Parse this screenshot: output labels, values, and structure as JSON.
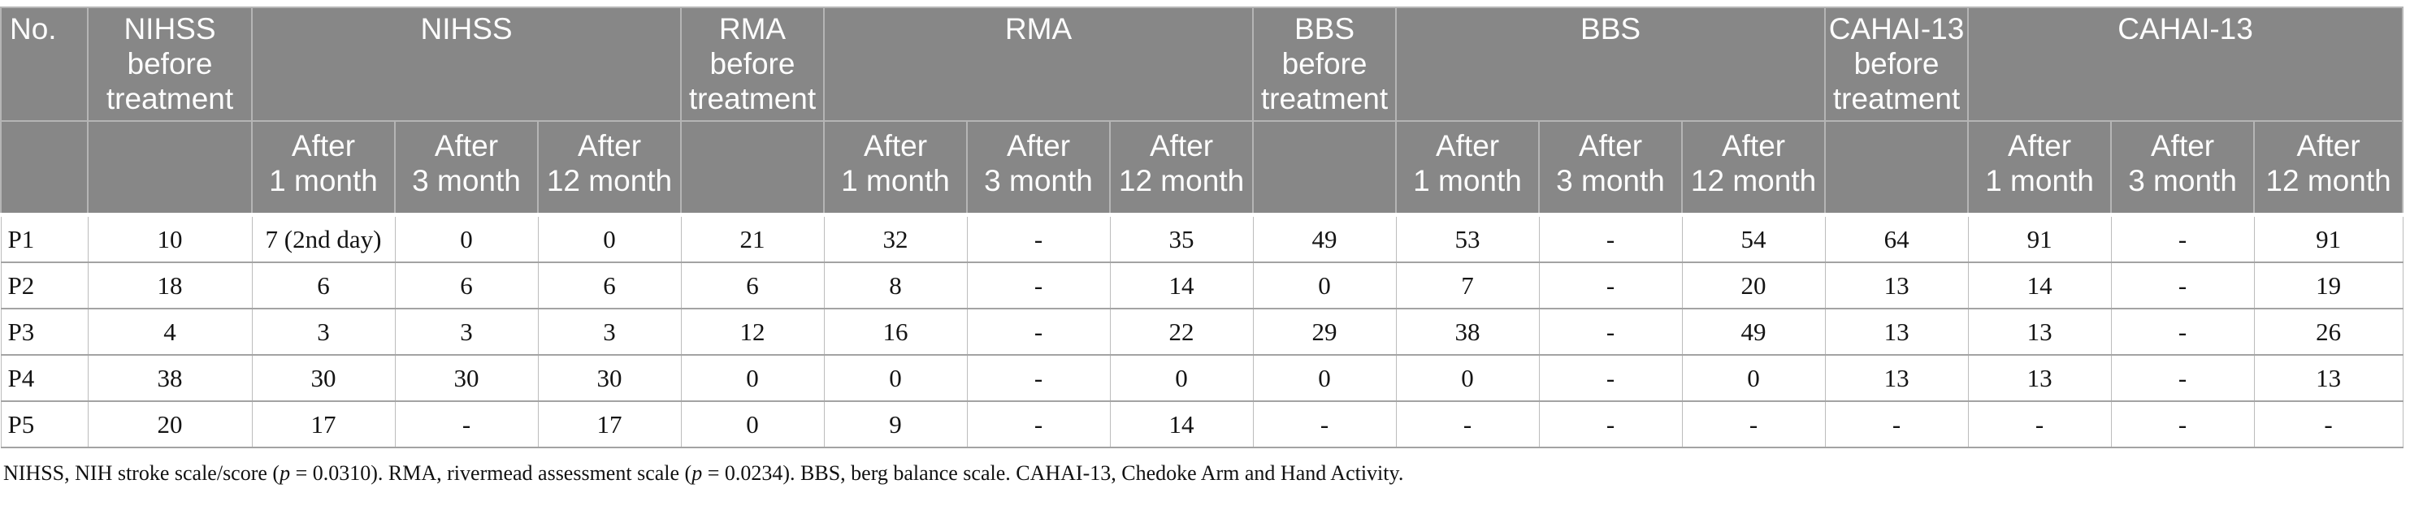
{
  "colors": {
    "header_bg": "#878787",
    "header_text": "#ffffff",
    "grid_line_light": "#b5b5b5",
    "grid_line_body": "#a3a3a3",
    "body_text": "#141414"
  },
  "table": {
    "header_row1": [
      {
        "name": "col-header-no",
        "lines": [
          "No."
        ],
        "colspan": 1,
        "align": "left"
      },
      {
        "name": "col-header-nihss-before-treatment",
        "lines": [
          "NIHSS",
          "before",
          "treatment"
        ],
        "colspan": 1
      },
      {
        "name": "group-header-nihss",
        "lines": [
          "NIHSS"
        ],
        "colspan": 3
      },
      {
        "name": "col-header-rma-before-treatment",
        "lines": [
          "RMA",
          "before",
          "treatment"
        ],
        "colspan": 1
      },
      {
        "name": "group-header-rma",
        "lines": [
          "RMA"
        ],
        "colspan": 3
      },
      {
        "name": "col-header-bbs-before-treatment",
        "lines": [
          "BBS",
          "before",
          "treatment"
        ],
        "colspan": 1
      },
      {
        "name": "group-header-bbs",
        "lines": [
          "BBS"
        ],
        "colspan": 3
      },
      {
        "name": "col-header-cahai-before-treatment",
        "lines": [
          "CAHAI-13",
          "before",
          "treatment"
        ],
        "colspan": 1
      },
      {
        "name": "group-header-cahai",
        "lines": [
          "CAHAI-13"
        ],
        "colspan": 3
      }
    ],
    "header_row2": [
      {
        "name": "subheader-empty-no",
        "lines": []
      },
      {
        "name": "subheader-empty-nihss-before",
        "lines": []
      },
      {
        "name": "subheader-nihss-after-1-month",
        "lines": [
          "After",
          "1 month"
        ]
      },
      {
        "name": "subheader-nihss-after-3-month",
        "lines": [
          "After",
          "3 month"
        ]
      },
      {
        "name": "subheader-nihss-after-12-month",
        "lines": [
          "After",
          "12 month"
        ]
      },
      {
        "name": "subheader-empty-rma-before",
        "lines": []
      },
      {
        "name": "subheader-rma-after-1-month",
        "lines": [
          "After",
          "1 month"
        ]
      },
      {
        "name": "subheader-rma-after-3-month",
        "lines": [
          "After",
          "3 month"
        ]
      },
      {
        "name": "subheader-rma-after-12-month",
        "lines": [
          "After",
          "12 month"
        ]
      },
      {
        "name": "subheader-empty-bbs-before",
        "lines": []
      },
      {
        "name": "subheader-bbs-after-1-month",
        "lines": [
          "After",
          "1 month"
        ]
      },
      {
        "name": "subheader-bbs-after-3-month",
        "lines": [
          "After",
          "3 month"
        ]
      },
      {
        "name": "subheader-bbs-after-12-month",
        "lines": [
          "After",
          "12 month"
        ]
      },
      {
        "name": "subheader-empty-cahai-before",
        "lines": []
      },
      {
        "name": "subheader-cahai-after-1-month",
        "lines": [
          "After",
          "1 month"
        ]
      },
      {
        "name": "subheader-cahai-after-3-month",
        "lines": [
          "After",
          "3 month"
        ]
      },
      {
        "name": "subheader-cahai-after-12-month",
        "lines": [
          "After",
          "12 month"
        ]
      }
    ],
    "rows": [
      [
        "P1",
        "10",
        "7 (2nd day)",
        "0",
        "0",
        "21",
        "32",
        "-",
        "35",
        "49",
        "53",
        "-",
        "54",
        "64",
        "91",
        "-",
        "91"
      ],
      [
        "P2",
        "18",
        "6",
        "6",
        "6",
        "6",
        "8",
        "-",
        "14",
        "0",
        "7",
        "-",
        "20",
        "13",
        "14",
        "-",
        "19"
      ],
      [
        "P3",
        "4",
        "3",
        "3",
        "3",
        "12",
        "16",
        "-",
        "22",
        "29",
        "38",
        "-",
        "49",
        "13",
        "13",
        "-",
        "26"
      ],
      [
        "P4",
        "38",
        "30",
        "30",
        "30",
        "0",
        "0",
        "-",
        "0",
        "0",
        "0",
        "-",
        "0",
        "13",
        "13",
        "-",
        "13"
      ],
      [
        "P5",
        "20",
        "17",
        "-",
        "17",
        "0",
        "9",
        "-",
        "14",
        "-",
        "-",
        "-",
        "-",
        "-",
        "-",
        "-",
        "-"
      ]
    ]
  },
  "footnote": {
    "parts": [
      {
        "text": "NIHSS, NIH stroke scale/score ("
      },
      {
        "text": "p",
        "italic": true
      },
      {
        "text": " = 0.0310). RMA, rivermead assessment scale ("
      },
      {
        "text": "p",
        "italic": true
      },
      {
        "text": " = 0.0234). BBS, berg balance scale. CAHAI-13, Chedoke Arm and Hand Activity."
      }
    ]
  }
}
